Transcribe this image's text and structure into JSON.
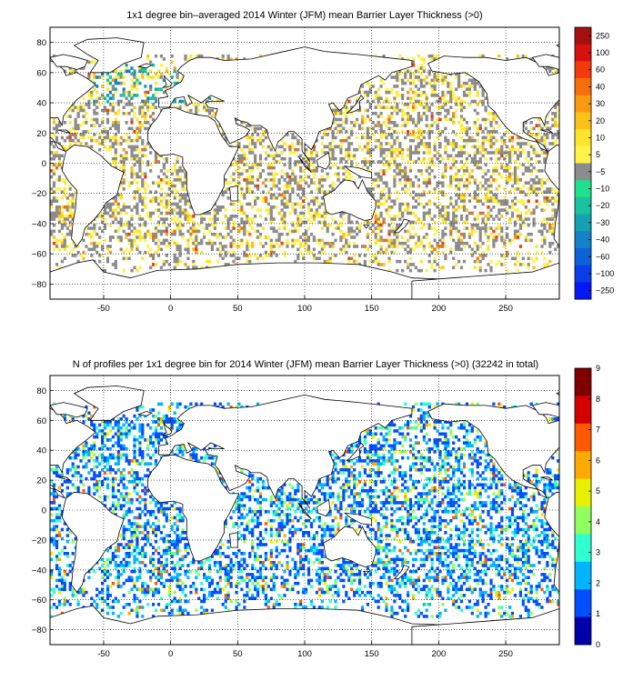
{
  "panels": [
    {
      "title": "1x1 degree bin–averaged 2014 Winter (JFM) mean Barrier Layer Thickness (>0)",
      "x_ticks": [
        "-50",
        "0",
        "50",
        "100",
        "150",
        "200",
        "250"
      ],
      "y_ticks": [
        "80",
        "60",
        "40",
        "20",
        "0",
        "−20",
        "−40",
        "−60",
        "−80"
      ],
      "colorbar": {
        "labels": [
          "250",
          "100",
          "60",
          "40",
          "30",
          "20",
          "10",
          "5",
          "−5",
          "−10",
          "−20",
          "−30",
          "−40",
          "−60",
          "−100",
          "−250"
        ],
        "colors": [
          "#a50f0f",
          "#d6120f",
          "#f23a0a",
          "#f76e0c",
          "#fb9a12",
          "#fcc21a",
          "#fde52c",
          "#fff34a",
          "#8c8c8c",
          "#1fe08c",
          "#19c2a0",
          "#15a1b0",
          "#1183c6",
          "#0c63d8",
          "#093ee8",
          "#0618f5"
        ]
      },
      "map_data": {
        "type": "gridded-map",
        "lon_range": [
          -90,
          290
        ],
        "lat_range": [
          -90,
          90
        ],
        "grid": true
      }
    },
    {
      "title": "N of profiles per 1x1 degree bin for 2014 Winter (JFM) mean Barrier Layer Thickness (>0) (32242 in total)",
      "x_ticks": [
        "-50",
        "0",
        "50",
        "100",
        "150",
        "200",
        "250"
      ],
      "y_ticks": [
        "80",
        "60",
        "40",
        "20",
        "0",
        "−20",
        "−40",
        "−60",
        "−80"
      ],
      "colorbar": {
        "labels": [
          "9",
          "8",
          "7",
          "6",
          "5",
          "4",
          "3",
          "2",
          "1",
          "0"
        ],
        "colors": [
          "#800000",
          "#d40000",
          "#ff5a00",
          "#ffaa00",
          "#e8f000",
          "#90ff60",
          "#30ffd0",
          "#00b4ff",
          "#0050ff",
          "#0000a8"
        ]
      },
      "map_data": {
        "type": "gridded-map",
        "lon_range": [
          -90,
          290
        ],
        "lat_range": [
          -90,
          90
        ],
        "grid": true
      }
    }
  ]
}
